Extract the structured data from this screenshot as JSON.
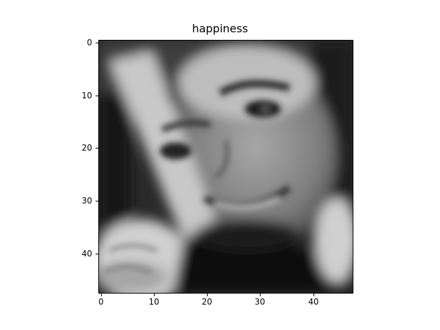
{
  "figure": {
    "title": "happiness",
    "x_ticks": [
      "0",
      "10",
      "20",
      "30",
      "40"
    ],
    "y_ticks": [
      "0",
      "10",
      "20",
      "30",
      "40"
    ]
  },
  "image": {
    "description": "",
    "palette": "grayscale"
  }
}
